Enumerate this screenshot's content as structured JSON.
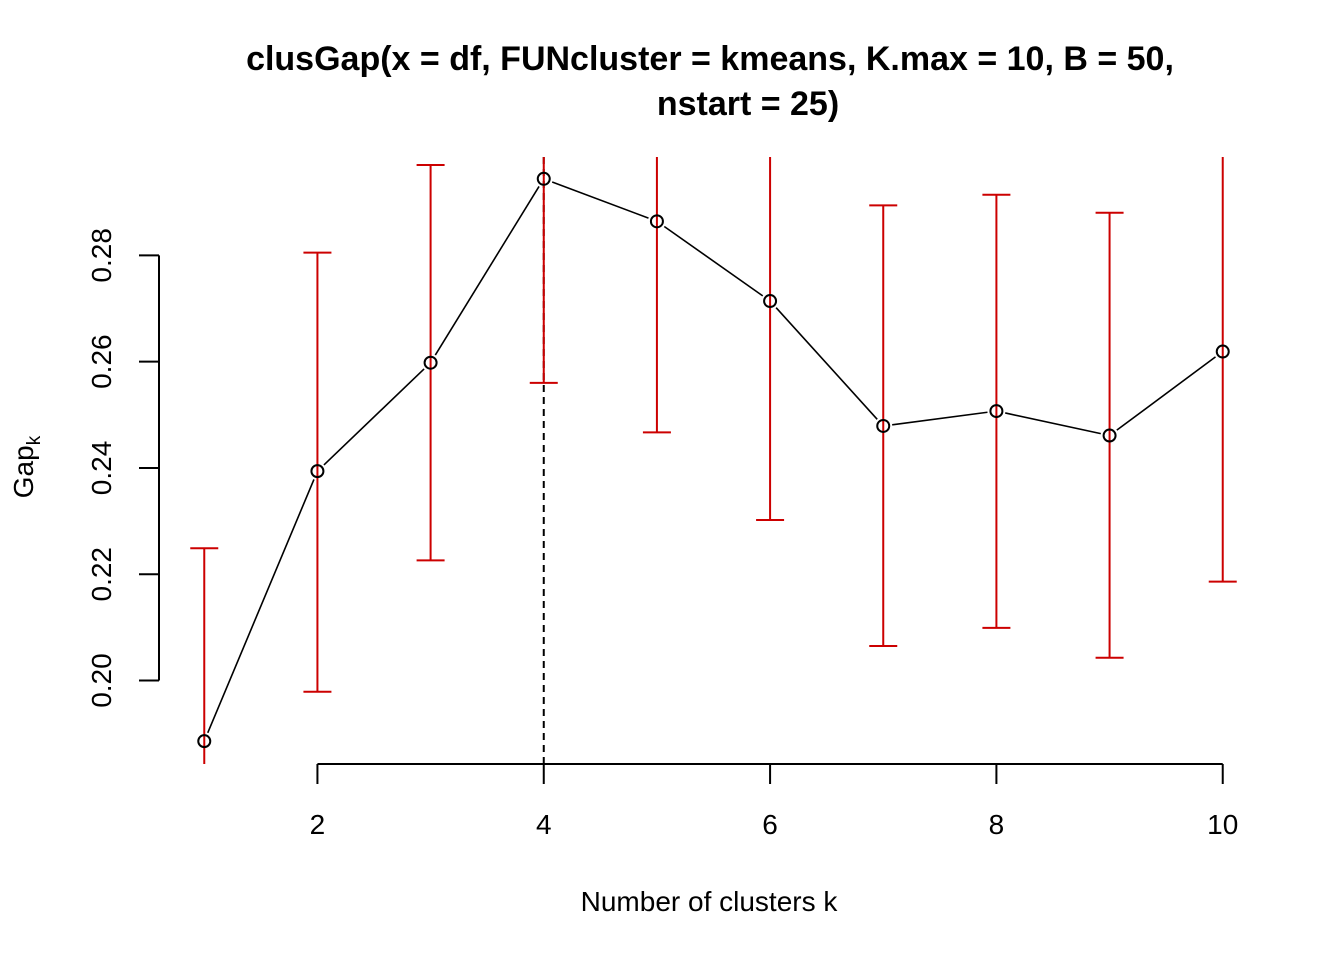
{
  "chart_data": {
    "type": "line",
    "title_line1": "clusGap(x = df, FUNcluster = kmeans, K.max = 10, B = 50,",
    "title_line2": "nstart = 25)",
    "xlabel": "Number of clusters k",
    "ylabel_main": "Gap",
    "ylabel_sub": "k",
    "x": [
      1,
      2,
      3,
      4,
      5,
      6,
      7,
      8,
      9,
      10
    ],
    "gap": [
      0.1886,
      0.2394,
      0.2598,
      0.2944,
      0.2864,
      0.2714,
      0.2479,
      0.2507,
      0.2461,
      0.2619
    ],
    "se_lower": [
      0.1843,
      0.1979,
      0.2226,
      0.256,
      0.2467,
      0.2302,
      0.2065,
      0.2099,
      0.2043,
      0.2186
    ],
    "se_upper": [
      0.2249,
      0.2805,
      0.297,
      0.2985,
      0.2985,
      0.2985,
      0.2894,
      0.2914,
      0.288,
      0.2985
    ],
    "x_ticks": [
      2,
      4,
      6,
      8,
      10
    ],
    "y_ticks": [
      0.2,
      0.22,
      0.24,
      0.26,
      0.28
    ],
    "y_tick_labels": [
      "0.20",
      "0.22",
      "0.24",
      "0.26",
      "0.28"
    ],
    "xlim": [
      0.6,
      10.4
    ],
    "ylim": [
      0.1843,
      0.2985
    ],
    "optimal_k": 4,
    "colors": {
      "line": "#000000",
      "error_bars": "#CC0000",
      "vline": "#000000"
    }
  }
}
